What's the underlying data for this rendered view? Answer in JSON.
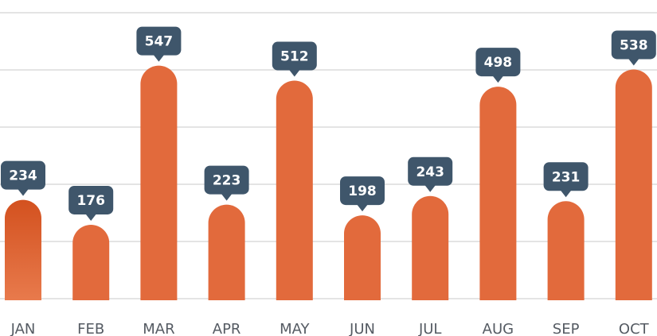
{
  "chart_data": {
    "type": "bar",
    "title": "",
    "xlabel": "",
    "ylabel": "",
    "categories": [
      "JAN",
      "FEB",
      "MAR",
      "APR",
      "MAY",
      "JUN",
      "JUL",
      "AUG",
      "SEP",
      "OCT"
    ],
    "values": [
      234,
      176,
      547,
      223,
      512,
      198,
      243,
      498,
      231,
      538
    ],
    "data_labels": [
      "234",
      "176",
      "547",
      "223",
      "512",
      "198",
      "243",
      "498",
      "231",
      "538"
    ],
    "grid": true,
    "legend": "none",
    "colors": {
      "bar": "#e26a3c",
      "bar_highlight": "#d45220",
      "label_bg": "#3f566b",
      "label_text": "#ffffff",
      "grid": "#e4e4e4",
      "tick_text": "#555b63"
    }
  }
}
